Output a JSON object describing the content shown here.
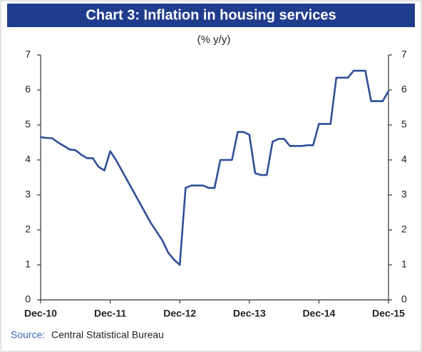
{
  "chart_data": {
    "type": "line",
    "title": "Chart 3: Inflation in housing services",
    "subtitle": "(% y/y)",
    "source_label": "Source:",
    "source": "Central Statistical Bureau",
    "categories": [
      "Dec-10",
      null,
      null,
      null,
      null,
      null,
      null,
      null,
      null,
      null,
      null,
      null,
      "Dec-11",
      null,
      null,
      null,
      null,
      null,
      null,
      null,
      null,
      null,
      null,
      null,
      "Dec-12",
      null,
      null,
      null,
      null,
      null,
      null,
      null,
      null,
      null,
      null,
      null,
      "Dec-13",
      null,
      null,
      null,
      null,
      null,
      null,
      null,
      null,
      null,
      null,
      null,
      "Dec-14",
      null,
      null,
      null,
      null,
      null,
      null,
      null,
      null,
      null,
      null,
      null,
      "Dec-15"
    ],
    "values": [
      4.65,
      4.63,
      4.62,
      4.5,
      4.4,
      4.3,
      4.28,
      4.15,
      4.05,
      4.05,
      3.8,
      3.7,
      4.25,
      4.0,
      3.7,
      3.4,
      3.1,
      2.8,
      2.5,
      2.2,
      1.95,
      1.7,
      1.35,
      1.15,
      1.0,
      3.2,
      3.27,
      3.27,
      3.27,
      3.2,
      3.2,
      4.0,
      4.0,
      4.0,
      4.8,
      4.8,
      4.72,
      3.62,
      3.57,
      3.57,
      4.52,
      4.6,
      4.6,
      4.4,
      4.4,
      4.4,
      4.42,
      4.42,
      5.03,
      5.03,
      5.03,
      6.35,
      6.35,
      6.35,
      6.55,
      6.55,
      6.55,
      5.68,
      5.68,
      5.68,
      5.97
    ],
    "color": "#2e4f96",
    "ylim": [
      0,
      7
    ],
    "yticks": [
      0,
      1,
      2,
      3,
      4,
      5,
      6,
      7
    ],
    "y2lim": [
      0,
      7
    ],
    "y2ticks": [
      0,
      1,
      2,
      3,
      4,
      5,
      6,
      7
    ],
    "grid": false
  }
}
